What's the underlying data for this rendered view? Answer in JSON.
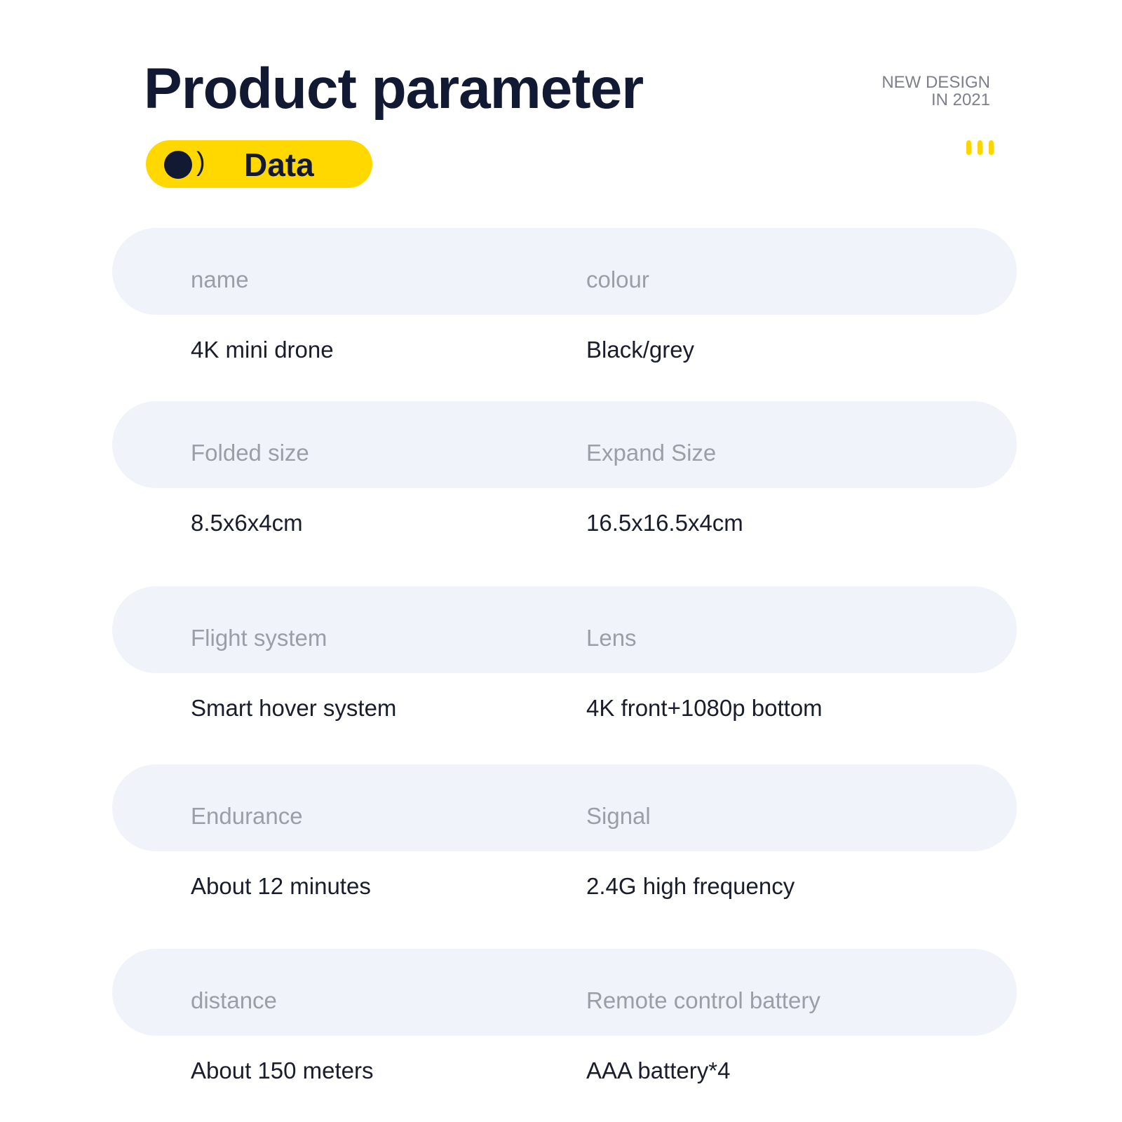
{
  "header": {
    "title": "Product parameter",
    "tagline": [
      "NEW DESIGN",
      "IN 2021"
    ],
    "badge_label": "Data",
    "accent": "#ffd800",
    "dark": "#121a33"
  },
  "rows": [
    {
      "labels": [
        "name",
        "colour"
      ],
      "values": [
        "4K mini drone",
        "Black/grey"
      ]
    },
    {
      "labels": [
        "Folded size",
        "Expand Size"
      ],
      "values": [
        "8.5x6x4cm",
        "16.5x16.5x4cm"
      ]
    },
    {
      "labels": [
        "Flight system",
        "Lens"
      ],
      "values": [
        "Smart hover system",
        "4K front+1080p bottom"
      ]
    },
    {
      "labels": [
        "Endurance",
        "Signal"
      ],
      "values": [
        "About 12 minutes",
        "2.4G high frequency"
      ]
    },
    {
      "labels": [
        "distance",
        "Remote control battery"
      ],
      "values": [
        "About 150 meters",
        "AAA battery*4"
      ]
    }
  ]
}
